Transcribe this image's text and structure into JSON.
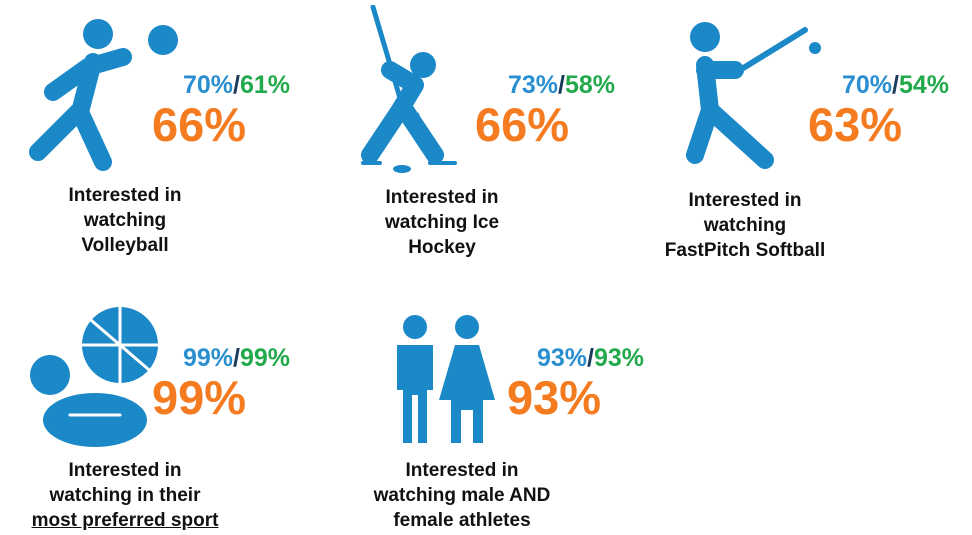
{
  "separator": "/",
  "items": [
    {
      "blue": "70%",
      "green": "61%",
      "total": "66%",
      "caption": [
        "Interested in",
        "watching",
        "Volleyball"
      ]
    },
    {
      "blue": "73%",
      "green": "58%",
      "total": "66%",
      "caption": [
        "Interested in",
        "watching Ice",
        "Hockey"
      ]
    },
    {
      "blue": "70%",
      "green": "54%",
      "total": "63%",
      "caption": [
        "Interested in",
        "watching",
        "FastPitch Softball"
      ]
    },
    {
      "blue": "99%",
      "green": "99%",
      "total": "99%",
      "caption": [
        "Interested in",
        "watching in their",
        "most preferred sport"
      ]
    },
    {
      "blue": "93%",
      "green": "93%",
      "total": "93%",
      "caption": [
        "Interested in",
        "watching male AND",
        "female athletes"
      ]
    }
  ]
}
